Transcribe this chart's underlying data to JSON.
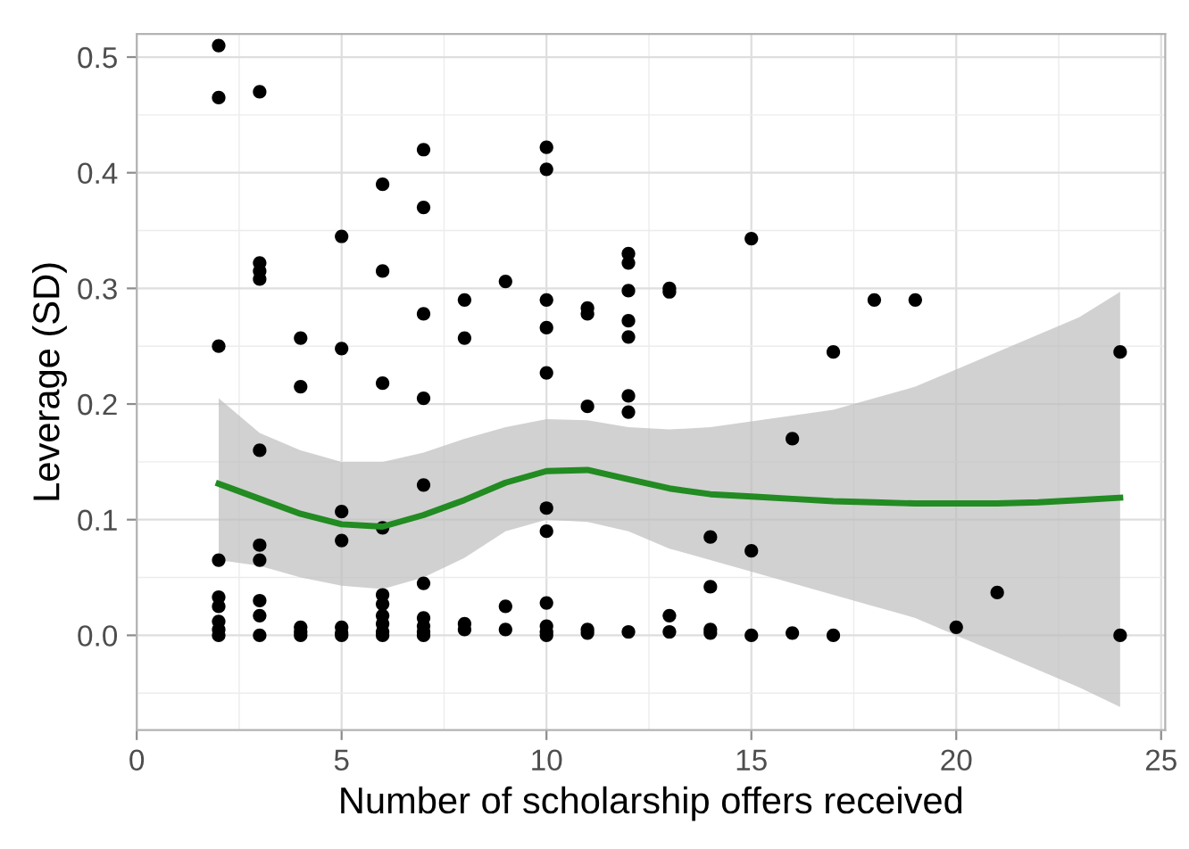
{
  "chart_data": {
    "type": "scatter",
    "xlabel": "Number of scholarship offers received",
    "ylabel": "Leverage (SD)",
    "xlim": [
      0,
      25.1
    ],
    "ylim": [
      -0.082,
      0.52
    ],
    "xticks": [
      0,
      5,
      10,
      15,
      20,
      25
    ],
    "yticks": [
      {
        "value": 0,
        "label": "0.0"
      },
      {
        "value": 0.1,
        "label": "0.1"
      },
      {
        "value": 0.2,
        "label": "0.2"
      },
      {
        "value": 0.3,
        "label": "0.3"
      },
      {
        "value": 0.4,
        "label": "0.4"
      },
      {
        "value": 0.5,
        "label": "0.5"
      }
    ],
    "grid": true,
    "series": [
      {
        "color": "#000000",
        "marker": "circle",
        "x": [
          2,
          2,
          2,
          2,
          2,
          2,
          2,
          2,
          2,
          3,
          3,
          3,
          3,
          3,
          3,
          3,
          3,
          3,
          3,
          4,
          4,
          4,
          4,
          4,
          5,
          5,
          5,
          5,
          5,
          5,
          5,
          6,
          6,
          6,
          6,
          6,
          6,
          6,
          6,
          6,
          6,
          7,
          7,
          7,
          7,
          7,
          7,
          7,
          7,
          7,
          7,
          8,
          8,
          8,
          8,
          9,
          9,
          9,
          10,
          10,
          10,
          10,
          10,
          10,
          10,
          10,
          10,
          10,
          10,
          11,
          11,
          11,
          11,
          11,
          12,
          12,
          12,
          12,
          12,
          12,
          12,
          12,
          13,
          13,
          13,
          13,
          14,
          14,
          14,
          14,
          15,
          15,
          15,
          16,
          16,
          17,
          17,
          18,
          19,
          20,
          21,
          24,
          24
        ],
        "values": [
          0.51,
          0.465,
          0.25,
          0.065,
          0.033,
          0.025,
          0.012,
          0.005,
          0.0,
          0.47,
          0.322,
          0.315,
          0.308,
          0.16,
          0.078,
          0.065,
          0.03,
          0.017,
          0.0,
          0.257,
          0.215,
          0.007,
          0.003,
          0.0,
          0.345,
          0.248,
          0.107,
          0.082,
          0.007,
          0.002,
          0.0,
          0.39,
          0.315,
          0.218,
          0.093,
          0.035,
          0.027,
          0.017,
          0.01,
          0.003,
          0.0,
          0.42,
          0.37,
          0.278,
          0.205,
          0.13,
          0.045,
          0.015,
          0.008,
          0.003,
          0.0,
          0.29,
          0.257,
          0.01,
          0.005,
          0.306,
          0.025,
          0.005,
          0.422,
          0.403,
          0.29,
          0.266,
          0.227,
          0.11,
          0.09,
          0.028,
          0.008,
          0.003,
          0.0,
          0.283,
          0.278,
          0.198,
          0.005,
          0.002,
          0.33,
          0.322,
          0.298,
          0.272,
          0.258,
          0.207,
          0.193,
          0.003,
          0.3,
          0.297,
          0.017,
          0.003,
          0.085,
          0.042,
          0.005,
          0.002,
          0.343,
          0.073,
          0.0,
          0.17,
          0.002,
          0.245,
          0.0,
          0.29,
          0.29,
          0.007,
          0.037,
          0.245,
          0.0
        ]
      },
      {
        "type": "line",
        "color": "#228b22",
        "marker": "none",
        "x": [
          2,
          3,
          4,
          5,
          6,
          7,
          8,
          9,
          10,
          11,
          12,
          13,
          14,
          15,
          16,
          17,
          18,
          19,
          20,
          21,
          22,
          23,
          24
        ],
        "values": [
          0.131,
          0.118,
          0.105,
          0.096,
          0.094,
          0.104,
          0.117,
          0.132,
          0.142,
          0.143,
          0.135,
          0.127,
          0.122,
          0.12,
          0.118,
          0.116,
          0.115,
          0.114,
          0.114,
          0.114,
          0.115,
          0.117,
          0.119
        ],
        "lower": [
          0.065,
          0.06,
          0.05,
          0.043,
          0.04,
          0.05,
          0.067,
          0.09,
          0.1,
          0.098,
          0.09,
          0.075,
          0.065,
          0.055,
          0.045,
          0.035,
          0.025,
          0.015,
          0.0,
          -0.015,
          -0.03,
          -0.045,
          -0.062
        ],
        "upper": [
          0.205,
          0.175,
          0.16,
          0.15,
          0.15,
          0.158,
          0.17,
          0.18,
          0.187,
          0.186,
          0.18,
          0.178,
          0.18,
          0.185,
          0.19,
          0.195,
          0.205,
          0.215,
          0.23,
          0.245,
          0.26,
          0.275,
          0.297
        ]
      }
    ]
  }
}
